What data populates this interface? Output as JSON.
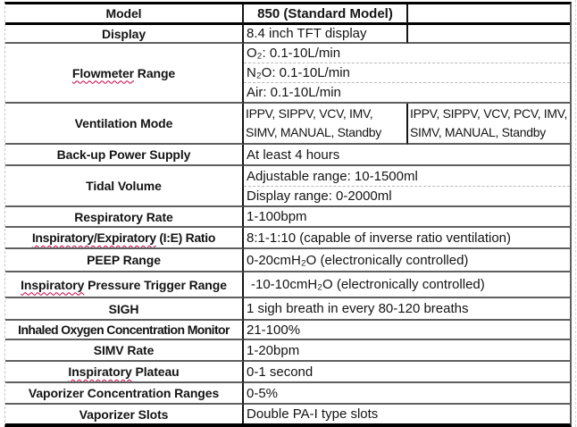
{
  "table": {
    "rows": [
      {
        "id": "model",
        "label": "Model",
        "value": "850 (Standard Model)",
        "value2": ""
      },
      {
        "id": "display",
        "label": "Display",
        "value": "8.4 inch TFT display",
        "value2": ""
      },
      {
        "id": "flowmeter-range",
        "label_mark": "Flowmeter",
        "label_rest": " Range",
        "values": [
          "O₂: 0.1-10L/min",
          "N₂O: 0.1-10L/min",
          "Air: 0.1-10L/min"
        ]
      },
      {
        "id": "ventilation-mode",
        "label": "Ventilation Mode",
        "value": "IPPV, SIPPV, VCV, IMV,\nSIMV, MANUAL, Standby",
        "value2": "IPPV, SIPPV, VCV, PCV, IMV,\nSIMV, MANUAL, Standby"
      },
      {
        "id": "backup-power-supply",
        "label": "Back-up Power Supply",
        "value": "At least 4 hours"
      },
      {
        "id": "tidal-volume",
        "label": "Tidal Volume",
        "values": [
          "Adjustable range: 10-1500ml",
          "Display range: 0-2000ml"
        ]
      },
      {
        "id": "respiratory-rate",
        "label": "Respiratory Rate",
        "value": "1-100bpm"
      },
      {
        "id": "inspiratory-expiratory-ratio",
        "label_mark": "Inspiratory/Expiratory",
        "label_rest": " (I:E) Ratio",
        "value": "8:1-1:10 (capable of inverse ratio ventilation)"
      },
      {
        "id": "peep-range",
        "label": "PEEP Range",
        "value": "0-20cmH₂O (electronically controlled)"
      },
      {
        "id": "inspiratory-pressure-trigger-range",
        "label_mark": "Inspiratory",
        "label_rest": " Pressure Trigger Range",
        "value": "-10-10cmH₂O (electronically controlled)"
      },
      {
        "id": "sigh",
        "label": "SIGH",
        "value": "1 sigh breath in every 80-120 breaths"
      },
      {
        "id": "inhaled-oxygen-concentration-monitor",
        "label": "Inhaled Oxygen Concentration Monitor",
        "value": "21-100%"
      },
      {
        "id": "simv-rate",
        "label": "SIMV Rate",
        "value": "1-20bpm"
      },
      {
        "id": "inspiratory-plateau",
        "label_mark": "Inspiratory",
        "label_rest": " Plateau",
        "value": "0-1 second"
      },
      {
        "id": "vaporizer-concentration-ranges",
        "label": "Vaporizer Concentration Ranges",
        "value": "0-5%"
      },
      {
        "id": "vaporizer-slots",
        "label": "Vaporizer Slots",
        "value": "Double PA-I type slots"
      }
    ],
    "colors": {
      "border_thick": "#000000",
      "border_thin": "#5f5f5f",
      "border_dashed": "#b8b8b8",
      "column_divider": "#151515",
      "spellcheck_underline": "#cc0044",
      "text": "#141414"
    }
  }
}
